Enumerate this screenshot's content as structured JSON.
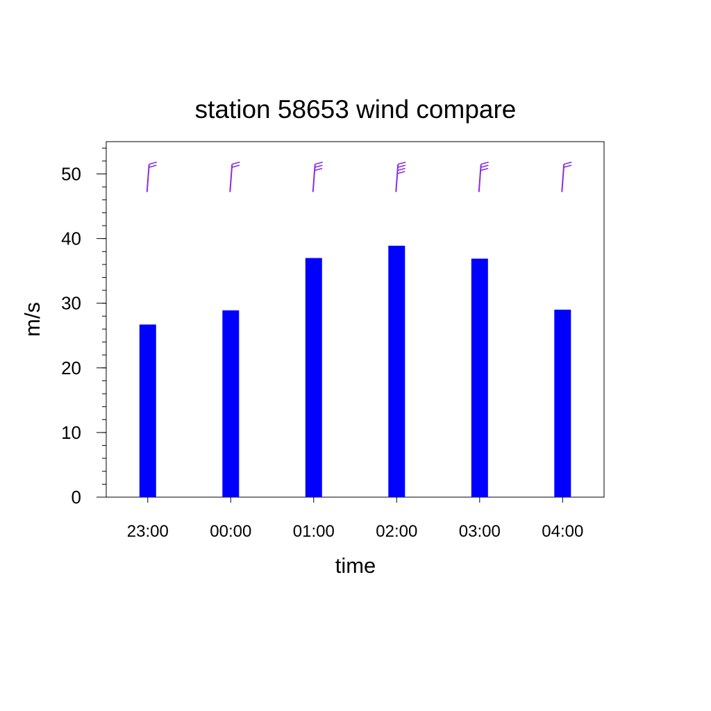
{
  "chart_data": {
    "type": "bar",
    "title": "station 58653 wind compare",
    "xlabel": "time",
    "ylabel": "m/s",
    "categories": [
      "23:00",
      "00:00",
      "01:00",
      "02:00",
      "03:00",
      "04:00"
    ],
    "values": [
      26.7,
      28.9,
      37.0,
      38.9,
      36.9,
      29.0
    ],
    "ylim": [
      0,
      55
    ],
    "yticks": [
      0,
      10,
      20,
      30,
      40,
      50
    ],
    "yminor_step": 2,
    "bar_color": "#0000ff",
    "wind_barbs": {
      "level": 50,
      "color": "#8a2be2",
      "barb_counts": [
        2,
        2,
        3,
        4,
        3,
        2
      ]
    },
    "grid": false,
    "legend": "none"
  }
}
